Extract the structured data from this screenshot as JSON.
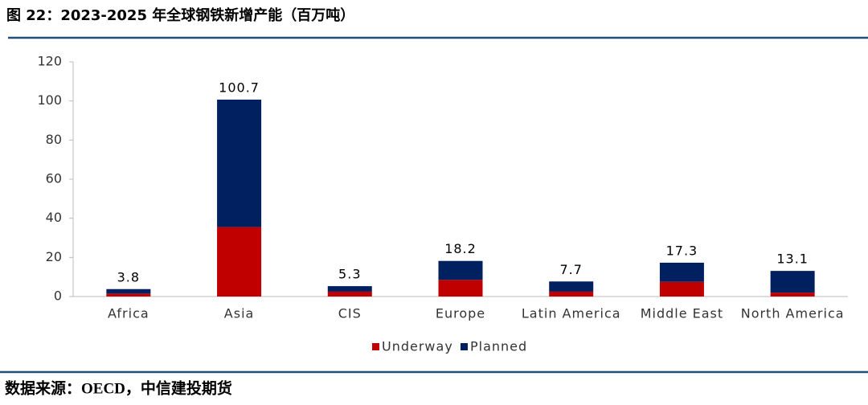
{
  "chart_data": {
    "type": "stacked_bar",
    "title": "图 22：2023-2025 年全球钢铁新增产能（百万吨）",
    "source": "数据来源：OECD，中信建投期货",
    "categories": [
      "Africa",
      "Asia",
      "CIS",
      "Europe",
      "Latin America",
      "Middle East",
      "North America"
    ],
    "series": [
      {
        "name": "Underway",
        "color": "#c00000",
        "values": [
          1.5,
          35.5,
          2.5,
          8.5,
          2.5,
          7.5,
          2.0
        ]
      },
      {
        "name": "Planned",
        "color": "#002060",
        "values": [
          2.3,
          65.2,
          2.8,
          9.7,
          5.2,
          9.8,
          11.1
        ]
      }
    ],
    "totals": [
      3.8,
      100.7,
      5.3,
      18.2,
      7.7,
      17.3,
      13.1
    ],
    "ylim": [
      0,
      120
    ],
    "yticks": [
      0,
      20,
      40,
      60,
      80,
      100,
      120
    ],
    "legend": "bottom"
  }
}
